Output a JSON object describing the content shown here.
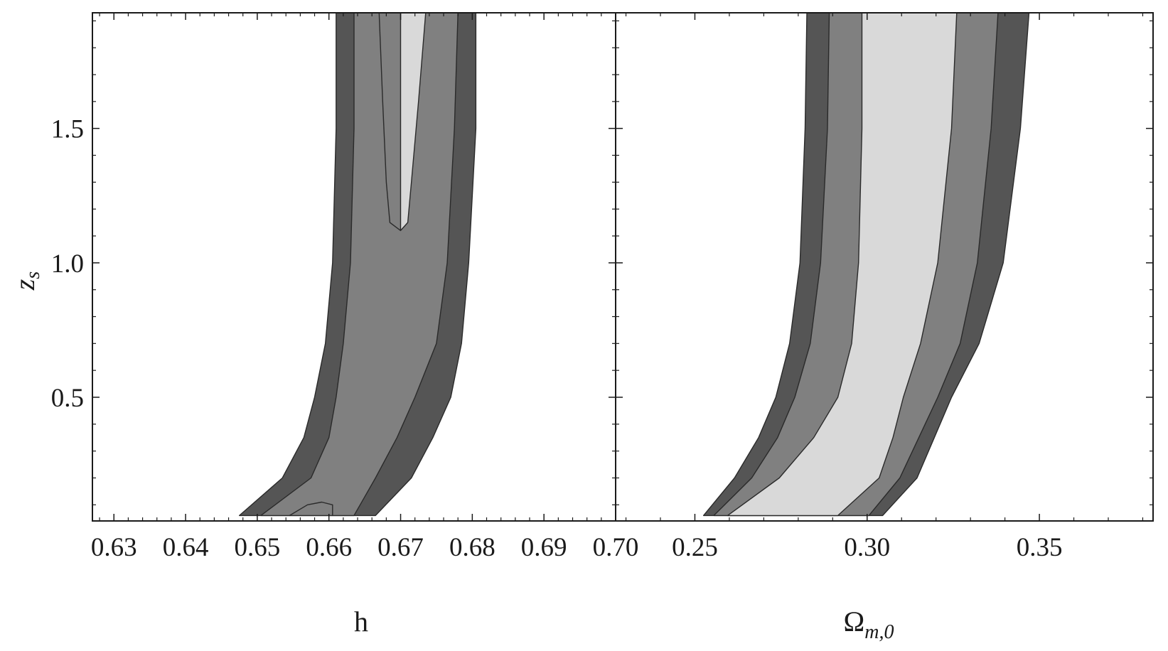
{
  "chart_data": [
    {
      "type": "contour",
      "xlabel": "h",
      "ylabel": "z",
      "ylabel_subscript": "s",
      "xlim": [
        0.627,
        0.7
      ],
      "ylim": [
        0.04,
        1.93
      ],
      "xticks": [
        0.63,
        0.64,
        0.65,
        0.66,
        0.67,
        0.68,
        0.69,
        0.7
      ],
      "xtick_labels": [
        "0.63",
        "0.64",
        "0.65",
        "0.66",
        "0.67",
        "0.68",
        "0.69",
        "0.70"
      ],
      "yticks": [
        0.5,
        1.0,
        1.5
      ],
      "ytick_labels": [
        "0.5",
        "1.0",
        "1.5"
      ],
      "fill_colors": [
        "#555555",
        "#808080",
        "#d9d9d9"
      ],
      "levels": [
        {
          "z": [
            0.06,
            0.2,
            0.35,
            0.5,
            0.7,
            1.0,
            1.5,
            1.93
          ],
          "lo": [
            0.6475,
            0.6535,
            0.6565,
            0.658,
            0.6595,
            0.6605,
            0.661,
            0.661
          ],
          "hi": [
            0.6665,
            0.6715,
            0.6745,
            0.677,
            0.6785,
            0.6795,
            0.6805,
            0.6805
          ]
        },
        {
          "z": [
            0.06,
            0.2,
            0.35,
            0.5,
            0.7,
            1.0,
            1.5,
            1.93
          ],
          "lo": [
            0.6505,
            0.6575,
            0.66,
            0.661,
            0.662,
            0.663,
            0.6635,
            0.6635
          ],
          "hi": [
            0.6635,
            0.6665,
            0.6695,
            0.672,
            0.675,
            0.6765,
            0.6775,
            0.678
          ]
        },
        {
          "z": [
            0.06,
            0.1,
            0.11,
            0.1,
            0.06
          ],
          "lo": [
            0.6545,
            0.657,
            0.659,
            0.6605,
            0.6605
          ],
          "hi": [
            0.6545,
            0.657,
            0.659,
            0.6605,
            0.6605
          ]
        },
        {
          "z": [
            1.93,
            1.6,
            1.3,
            1.15,
            1.12,
            1.15,
            1.3,
            1.6,
            1.93
          ],
          "lo": [
            0.667,
            0.6675,
            0.668,
            0.6685,
            0.67,
            0.67,
            0.67,
            0.67,
            0.67
          ],
          "hi": [
            0.667,
            0.6675,
            0.668,
            0.6685,
            0.67,
            0.671,
            0.6715,
            0.6725,
            0.6735
          ]
        }
      ]
    },
    {
      "type": "contour",
      "xlabel": "Ω",
      "xlabel_subscript": "m,0",
      "xlim": [
        0.227,
        0.383
      ],
      "ylim": [
        0.04,
        1.93
      ],
      "xticks": [
        0.25,
        0.3,
        0.35
      ],
      "xtick_labels": [
        "0.25",
        "0.30",
        "0.35"
      ],
      "fill_colors": [
        "#555555",
        "#808080",
        "#d9d9d9"
      ],
      "levels": [
        {
          "z": [
            0.06,
            0.2,
            0.35,
            0.5,
            0.7,
            1.0,
            1.5,
            1.93
          ],
          "lo": [
            0.2525,
            0.2615,
            0.2685,
            0.2735,
            0.2775,
            0.2805,
            0.282,
            0.2825
          ],
          "hi": [
            0.3045,
            0.3145,
            0.3195,
            0.3245,
            0.3325,
            0.3395,
            0.3445,
            0.347
          ]
        },
        {
          "z": [
            0.06,
            0.2,
            0.35,
            0.5,
            0.7,
            1.0,
            1.5,
            1.93
          ],
          "lo": [
            0.2555,
            0.2665,
            0.274,
            0.279,
            0.2835,
            0.2865,
            0.2885,
            0.289
          ],
          "hi": [
            0.3005,
            0.3095,
            0.315,
            0.3205,
            0.327,
            0.332,
            0.336,
            0.338
          ]
        },
        {
          "z": [
            0.06,
            0.2,
            0.35,
            0.5,
            0.7,
            1.0,
            1.5,
            1.93
          ],
          "lo": [
            0.2595,
            0.2745,
            0.2845,
            0.2915,
            0.2955,
            0.2975,
            0.2985,
            0.2985
          ],
          "hi": [
            0.2915,
            0.3035,
            0.3075,
            0.3105,
            0.3155,
            0.3205,
            0.3245,
            0.326
          ]
        }
      ]
    }
  ]
}
